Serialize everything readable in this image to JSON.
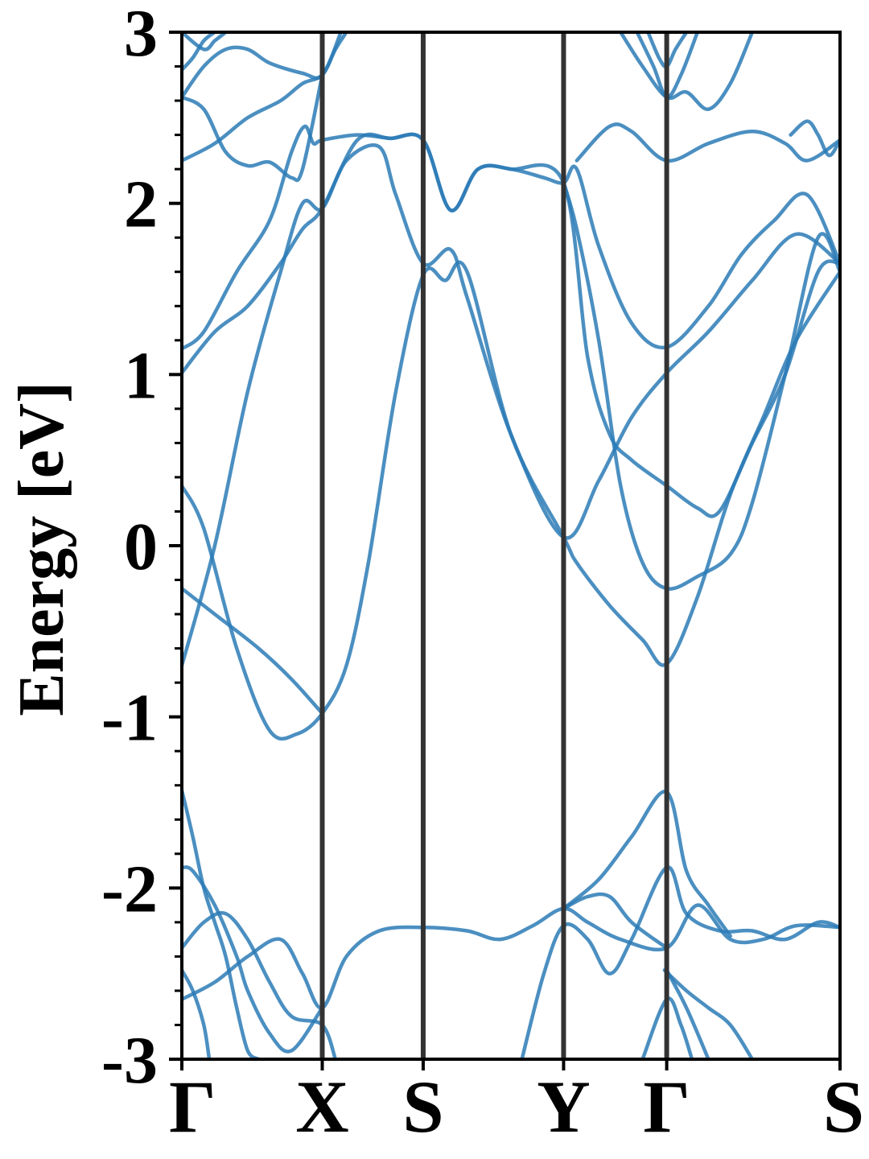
{
  "chart_data": {
    "type": "line",
    "title": "",
    "xlabel": "",
    "ylabel": "Energy [eV]",
    "ylim": [
      -3,
      3
    ],
    "yticks": [
      {
        "value": 3,
        "label": "3"
      },
      {
        "value": 2,
        "label": "2"
      },
      {
        "value": 1,
        "label": "1"
      },
      {
        "value": 0,
        "label": "0"
      },
      {
        "value": -1,
        "label": "-1"
      },
      {
        "value": -2,
        "label": "-2"
      },
      {
        "value": -3,
        "label": "-3"
      }
    ],
    "x_path_length": 6.0,
    "high_symmetry_points": [
      {
        "label": "Γ",
        "x": 0.0
      },
      {
        "label": "X",
        "x": 1.28
      },
      {
        "label": "S",
        "x": 2.2
      },
      {
        "label": "Y",
        "x": 3.48
      },
      {
        "label": "Γ",
        "x": 4.42
      },
      {
        "label": "S",
        "x": 6.0
      }
    ],
    "grid": false,
    "legend": "none",
    "band_color": "#2c7bb6",
    "vline_color": "#333333",
    "series": [
      {
        "points": [
          [
            0,
            -0.7
          ],
          [
            0.3,
            0.0
          ],
          [
            0.6,
            0.9
          ],
          [
            0.9,
            1.6
          ],
          [
            1.1,
            2.0
          ],
          [
            1.28,
            1.97
          ],
          [
            1.5,
            2.25
          ],
          [
            1.8,
            2.33
          ],
          [
            1.95,
            2.05
          ],
          [
            2.2,
            1.65
          ],
          [
            2.45,
            1.73
          ],
          [
            2.6,
            1.45
          ],
          [
            3.0,
            0.65
          ],
          [
            3.48,
            0.05
          ],
          [
            3.8,
            0.38
          ],
          [
            4.1,
            0.75
          ],
          [
            4.42,
            1.01
          ],
          [
            4.8,
            1.25
          ],
          [
            5.2,
            1.55
          ],
          [
            5.6,
            1.82
          ],
          [
            6.0,
            1.65
          ]
        ]
      },
      {
        "points": [
          [
            0,
            0.35
          ],
          [
            0.2,
            0.1
          ],
          [
            0.5,
            -0.6
          ],
          [
            0.8,
            -1.08
          ],
          [
            1.05,
            -1.1
          ],
          [
            1.28,
            -0.98
          ],
          [
            1.5,
            -0.7
          ],
          [
            1.7,
            -0.1
          ],
          [
            1.95,
            0.9
          ],
          [
            2.2,
            1.58
          ],
          [
            2.4,
            1.55
          ],
          [
            2.6,
            1.6
          ],
          [
            3.0,
            0.65
          ],
          [
            3.48,
            0.05
          ],
          [
            3.6,
            -0.1
          ],
          [
            3.9,
            -0.35
          ],
          [
            4.2,
            -0.55
          ],
          [
            4.42,
            -0.69
          ],
          [
            4.7,
            -0.3
          ],
          [
            5.0,
            0.3
          ],
          [
            5.3,
            0.75
          ],
          [
            5.6,
            1.2
          ],
          [
            6.0,
            1.6
          ]
        ]
      },
      {
        "points": [
          [
            0,
            -0.25
          ],
          [
            0.3,
            -0.4
          ],
          [
            0.7,
            -0.6
          ],
          [
            1.0,
            -0.78
          ],
          [
            1.28,
            -0.98
          ]
        ]
      },
      {
        "points": [
          [
            0,
            1.15
          ],
          [
            0.2,
            1.25
          ],
          [
            0.5,
            1.6
          ],
          [
            0.8,
            1.9
          ],
          [
            1.0,
            2.3
          ],
          [
            1.12,
            2.45
          ],
          [
            1.2,
            2.35
          ],
          [
            1.28,
            2.37
          ],
          [
            1.6,
            2.4
          ],
          [
            1.9,
            2.38
          ],
          [
            2.2,
            2.37
          ],
          [
            2.45,
            1.96
          ],
          [
            2.7,
            2.2
          ],
          [
            3.0,
            2.2
          ],
          [
            3.3,
            2.15
          ],
          [
            3.48,
            2.12
          ],
          [
            3.6,
            2.2
          ],
          [
            3.8,
            1.75
          ],
          [
            4.1,
            1.3
          ],
          [
            4.42,
            1.16
          ],
          [
            4.8,
            1.4
          ],
          [
            5.1,
            1.7
          ],
          [
            5.4,
            1.9
          ],
          [
            5.7,
            2.05
          ],
          [
            6.0,
            1.65
          ]
        ]
      },
      {
        "points": [
          [
            0,
            1.01
          ],
          [
            0.3,
            1.25
          ],
          [
            0.6,
            1.4
          ],
          [
            0.9,
            1.65
          ],
          [
            1.1,
            1.85
          ],
          [
            1.28,
            1.97
          ],
          [
            1.6,
            2.37
          ],
          [
            1.9,
            2.38
          ],
          [
            2.2,
            2.37
          ],
          [
            2.45,
            1.96
          ],
          [
            2.7,
            2.2
          ],
          [
            3.0,
            2.2
          ],
          [
            3.48,
            2.12
          ],
          [
            3.7,
            1.1
          ],
          [
            3.9,
            0.65
          ],
          [
            4.1,
            0.5
          ],
          [
            4.42,
            0.35
          ],
          [
            4.7,
            0.22
          ],
          [
            4.9,
            0.2
          ],
          [
            5.2,
            0.6
          ],
          [
            5.5,
            1.0
          ],
          [
            5.8,
            1.6
          ],
          [
            6.0,
            1.65
          ]
        ]
      },
      {
        "points": [
          [
            3.48,
            2.12
          ],
          [
            3.6,
            1.85
          ],
          [
            3.8,
            1.2
          ],
          [
            4.0,
            0.35
          ],
          [
            4.2,
            -0.1
          ],
          [
            4.42,
            -0.25
          ],
          [
            4.7,
            -0.18
          ],
          [
            5.0,
            -0.05
          ],
          [
            5.2,
            0.25
          ],
          [
            5.5,
            1.0
          ],
          [
            5.8,
            1.8
          ],
          [
            6.0,
            1.6
          ]
        ]
      },
      {
        "points": [
          [
            0,
            2.25
          ],
          [
            0.3,
            2.35
          ],
          [
            0.6,
            2.5
          ],
          [
            0.9,
            2.6
          ],
          [
            1.1,
            2.7
          ],
          [
            1.28,
            2.75
          ],
          [
            1.4,
            2.9
          ],
          [
            1.5,
            3.0
          ]
        ]
      },
      {
        "points": [
          [
            0,
            2.62
          ],
          [
            0.2,
            2.55
          ],
          [
            0.4,
            2.3
          ],
          [
            0.6,
            2.22
          ],
          [
            0.8,
            2.24
          ],
          [
            1.0,
            2.15
          ],
          [
            1.1,
            2.2
          ],
          [
            1.28,
            2.75
          ]
        ]
      },
      {
        "points": [
          [
            0,
            2.62
          ],
          [
            0.2,
            2.8
          ],
          [
            0.4,
            2.9
          ],
          [
            0.6,
            2.9
          ],
          [
            0.8,
            2.82
          ],
          [
            1.1,
            2.76
          ],
          [
            1.28,
            2.75
          ],
          [
            1.45,
            3.0
          ]
        ]
      },
      {
        "points": [
          [
            0,
            2.78
          ],
          [
            0.1,
            2.85
          ],
          [
            0.2,
            2.95
          ],
          [
            0.3,
            3.0
          ]
        ]
      },
      {
        "points": [
          [
            0,
            3.0
          ],
          [
            0.2,
            2.9
          ],
          [
            0.3,
            2.95
          ],
          [
            0.4,
            3.0
          ]
        ]
      },
      {
        "points": [
          [
            3.6,
            2.25
          ],
          [
            3.9,
            2.45
          ],
          [
            4.1,
            2.42
          ],
          [
            4.42,
            2.25
          ],
          [
            4.8,
            2.35
          ],
          [
            5.2,
            2.42
          ],
          [
            5.5,
            2.35
          ],
          [
            5.7,
            2.25
          ],
          [
            6.0,
            2.37
          ]
        ]
      },
      {
        "points": [
          [
            4.0,
            3.0
          ],
          [
            4.2,
            2.8
          ],
          [
            4.42,
            2.62
          ],
          [
            4.6,
            2.65
          ],
          [
            4.8,
            2.55
          ],
          [
            5.0,
            2.7
          ],
          [
            5.2,
            3.0
          ]
        ]
      },
      {
        "points": [
          [
            4.15,
            3.0
          ],
          [
            4.3,
            2.8
          ],
          [
            4.42,
            2.62
          ],
          [
            4.55,
            2.75
          ],
          [
            4.7,
            3.0
          ]
        ]
      },
      {
        "points": [
          [
            4.25,
            3.0
          ],
          [
            4.35,
            2.85
          ],
          [
            4.42,
            2.8
          ],
          [
            4.5,
            2.9
          ],
          [
            4.6,
            3.0
          ]
        ]
      },
      {
        "points": [
          [
            5.55,
            2.4
          ],
          [
            5.7,
            2.48
          ],
          [
            5.8,
            2.4
          ],
          [
            5.9,
            2.28
          ],
          [
            6.0,
            2.37
          ]
        ]
      },
      {
        "points": [
          [
            0,
            -1.43
          ],
          [
            0.1,
            -1.7
          ],
          [
            0.2,
            -2.0
          ],
          [
            0.3,
            -2.2
          ],
          [
            0.4,
            -2.4
          ],
          [
            0.5,
            -2.7
          ],
          [
            0.6,
            -2.95
          ],
          [
            0.7,
            -3.0
          ]
        ]
      },
      {
        "points": [
          [
            0,
            -1.88
          ],
          [
            0.1,
            -1.9
          ],
          [
            0.3,
            -2.1
          ],
          [
            0.5,
            -2.4
          ],
          [
            0.6,
            -2.6
          ],
          [
            0.8,
            -2.85
          ],
          [
            1.0,
            -2.95
          ],
          [
            1.28,
            -2.7
          ]
        ]
      },
      {
        "points": [
          [
            0,
            -2.35
          ],
          [
            0.2,
            -2.2
          ],
          [
            0.4,
            -2.15
          ],
          [
            0.6,
            -2.3
          ],
          [
            0.8,
            -2.55
          ],
          [
            1.0,
            -2.75
          ],
          [
            1.28,
            -2.8
          ],
          [
            1.4,
            -3.0
          ]
        ]
      },
      {
        "points": [
          [
            0,
            -2.48
          ],
          [
            0.1,
            -2.6
          ],
          [
            0.2,
            -2.8
          ],
          [
            0.25,
            -3.0
          ]
        ]
      },
      {
        "points": [
          [
            0,
            -2.65
          ],
          [
            0.3,
            -2.55
          ],
          [
            0.6,
            -2.4
          ],
          [
            0.9,
            -2.3
          ],
          [
            1.1,
            -2.5
          ],
          [
            1.28,
            -2.7
          ],
          [
            1.5,
            -2.4
          ],
          [
            1.8,
            -2.25
          ],
          [
            2.2,
            -2.23
          ],
          [
            2.6,
            -2.25
          ],
          [
            2.9,
            -2.3
          ],
          [
            3.2,
            -2.22
          ],
          [
            3.48,
            -2.12
          ],
          [
            3.7,
            -2.2
          ],
          [
            4.0,
            -2.3
          ],
          [
            4.42,
            -2.35
          ],
          [
            4.7,
            -2.1
          ],
          [
            5.0,
            -2.3
          ],
          [
            5.3,
            -2.3
          ],
          [
            5.6,
            -2.22
          ],
          [
            6.0,
            -2.23
          ]
        ]
      },
      {
        "points": [
          [
            3.1,
            -3.0
          ],
          [
            3.3,
            -2.5
          ],
          [
            3.48,
            -2.22
          ],
          [
            3.7,
            -2.3
          ],
          [
            3.9,
            -2.5
          ],
          [
            4.1,
            -2.3
          ],
          [
            4.42,
            -1.88
          ],
          [
            4.6,
            -2.15
          ],
          [
            4.9,
            -2.25
          ],
          [
            5.2,
            -2.25
          ],
          [
            5.5,
            -2.3
          ],
          [
            5.8,
            -2.2
          ],
          [
            6.0,
            -2.23
          ]
        ]
      },
      {
        "points": [
          [
            3.48,
            -2.12
          ],
          [
            3.7,
            -2.05
          ],
          [
            3.9,
            -2.05
          ],
          [
            4.1,
            -2.2
          ],
          [
            4.42,
            -2.35
          ]
        ]
      },
      {
        "points": [
          [
            3.48,
            -2.12
          ],
          [
            3.8,
            -1.95
          ],
          [
            4.1,
            -1.7
          ],
          [
            4.42,
            -1.44
          ],
          [
            4.6,
            -1.9
          ],
          [
            4.8,
            -2.1
          ],
          [
            5.0,
            -2.28
          ]
        ]
      },
      {
        "points": [
          [
            4.4,
            -2.48
          ],
          [
            4.6,
            -2.6
          ],
          [
            4.8,
            -2.7
          ],
          [
            5.0,
            -2.8
          ],
          [
            5.2,
            -3.0
          ]
        ]
      },
      {
        "points": [
          [
            4.2,
            -3.0
          ],
          [
            4.42,
            -2.65
          ],
          [
            4.55,
            -2.8
          ],
          [
            4.65,
            -3.0
          ]
        ]
      },
      {
        "points": [
          [
            4.42,
            -2.48
          ],
          [
            4.6,
            -2.7
          ],
          [
            4.8,
            -3.0
          ]
        ]
      }
    ]
  }
}
